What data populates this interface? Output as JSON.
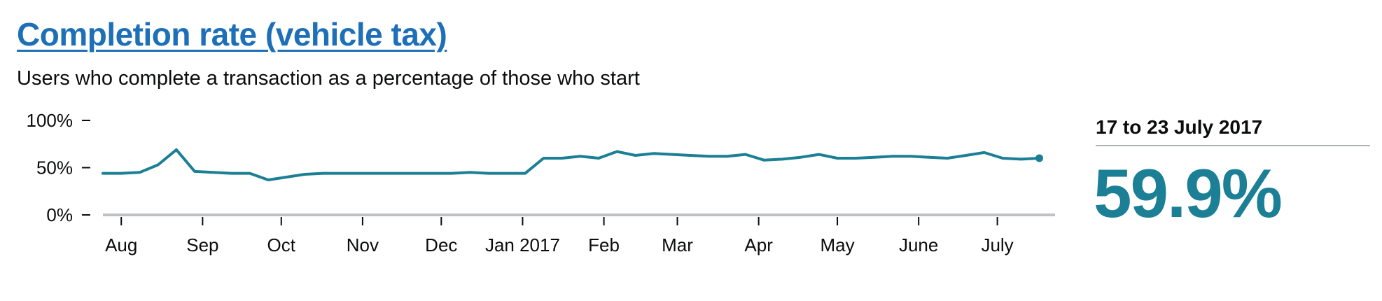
{
  "header": {
    "title": "Completion rate (vehicle tax)",
    "subtitle": "Users who complete a transaction as a percentage of those who start"
  },
  "summary": {
    "period": "17 to 23 July 2017",
    "value": "59.9%"
  },
  "colors": {
    "line": "#1b7f95",
    "axis": "#bfc1c3",
    "title": "#1d70b8"
  },
  "chart_data": {
    "type": "line",
    "title": "",
    "xlabel": "",
    "ylabel": "",
    "ylim": [
      0,
      100
    ],
    "x_range": [
      "2016-07-25",
      "2017-07-23"
    ],
    "y_ticks": [
      {
        "value": 0,
        "label": "0%"
      },
      {
        "value": 50,
        "label": "50%"
      },
      {
        "value": 100,
        "label": "100%"
      }
    ],
    "x_ticks": [
      {
        "date": "2016-08-01",
        "label": "Aug"
      },
      {
        "date": "2016-09-01",
        "label": "Sep"
      },
      {
        "date": "2016-10-01",
        "label": "Oct"
      },
      {
        "date": "2016-11-01",
        "label": "Nov"
      },
      {
        "date": "2016-12-01",
        "label": "Dec"
      },
      {
        "date": "2017-01-01",
        "label": "Jan 2017"
      },
      {
        "date": "2017-02-01",
        "label": "Feb"
      },
      {
        "date": "2017-03-01",
        "label": "Mar"
      },
      {
        "date": "2017-04-01",
        "label": "Apr"
      },
      {
        "date": "2017-05-01",
        "label": "May"
      },
      {
        "date": "2017-06-01",
        "label": "June"
      },
      {
        "date": "2017-07-01",
        "label": "July"
      }
    ],
    "series": [
      {
        "x": [
          "2016-07-25",
          "2016-08-01",
          "2016-08-08",
          "2016-08-15",
          "2016-08-22",
          "2016-08-29",
          "2016-09-05",
          "2016-09-12",
          "2016-09-19",
          "2016-09-26",
          "2016-10-03",
          "2016-10-10",
          "2016-10-17",
          "2016-10-24",
          "2016-10-31",
          "2016-11-07",
          "2016-11-14",
          "2016-11-21",
          "2016-11-28",
          "2016-12-05",
          "2016-12-12",
          "2016-12-19",
          "2016-12-26",
          "2017-01-02",
          "2017-01-09",
          "2017-01-16",
          "2017-01-23",
          "2017-01-30",
          "2017-02-06",
          "2017-02-13",
          "2017-02-20",
          "2017-02-27",
          "2017-03-06",
          "2017-03-13",
          "2017-03-20",
          "2017-03-27",
          "2017-04-03",
          "2017-04-10",
          "2017-04-17",
          "2017-04-24",
          "2017-05-01",
          "2017-05-08",
          "2017-05-15",
          "2017-05-22",
          "2017-05-29",
          "2017-06-05",
          "2017-06-12",
          "2017-06-19",
          "2017-06-26",
          "2017-07-03",
          "2017-07-10",
          "2017-07-17"
        ],
        "values": [
          44,
          44,
          45,
          53,
          69,
          46,
          45,
          44,
          44,
          37,
          40,
          43,
          44,
          44,
          44,
          44,
          44,
          44,
          44,
          44,
          45,
          44,
          44,
          44,
          60,
          60,
          62,
          60,
          67,
          63,
          65,
          64,
          63,
          62,
          62,
          64,
          58,
          59,
          61,
          64,
          60,
          60,
          61,
          62,
          62,
          61,
          60,
          63,
          66,
          60,
          59,
          60
        ]
      }
    ]
  }
}
